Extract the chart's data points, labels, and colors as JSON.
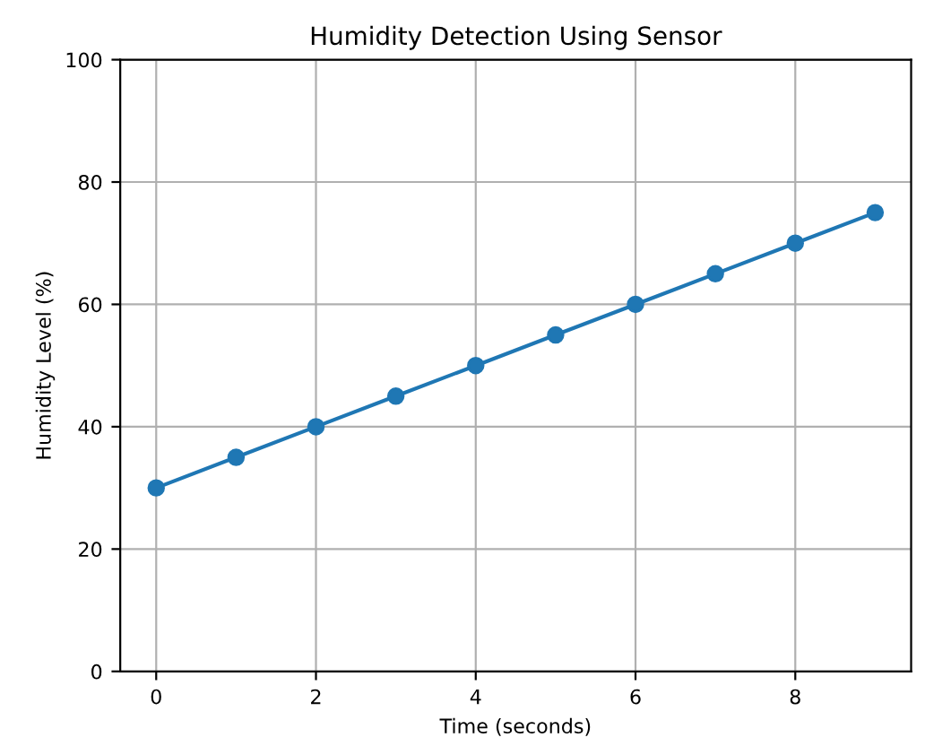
{
  "chart_data": {
    "type": "line",
    "title": "Humidity Detection Using Sensor",
    "xlabel": "Time (seconds)",
    "ylabel": "Humidity Level (%)",
    "x": [
      0,
      1,
      2,
      3,
      4,
      5,
      6,
      7,
      8,
      9
    ],
    "series": [
      {
        "color": "#1f77b4",
        "values": [
          30,
          35,
          40,
          45,
          50,
          55,
          60,
          65,
          70,
          75
        ]
      }
    ],
    "xlim": [
      -0.45,
      9.45
    ],
    "xticks": [
      0,
      2,
      4,
      6,
      8
    ],
    "ylim": [
      0,
      100
    ],
    "yticks": [
      0,
      20,
      40,
      60,
      80,
      100
    ],
    "grid": true,
    "marker": "circle",
    "line_style": "solid"
  }
}
